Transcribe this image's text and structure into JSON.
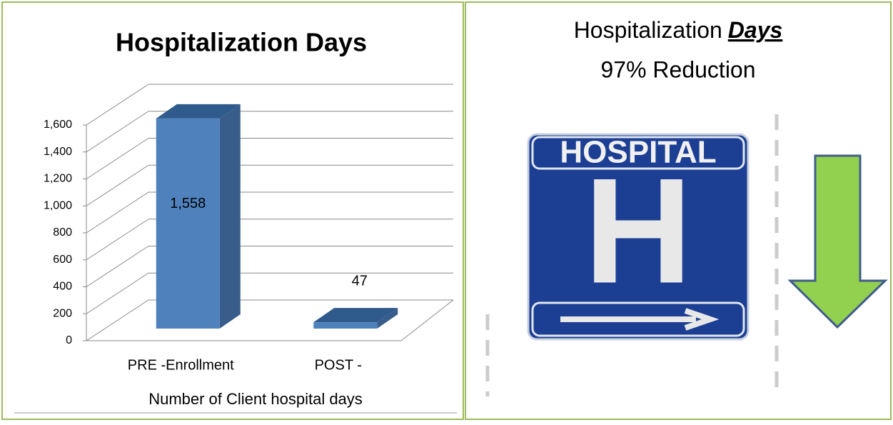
{
  "chart_data": {
    "type": "bar3d",
    "title": "Hospitalization Days",
    "categories": [
      "PRE -Enrollment",
      "POST -"
    ],
    "x_label": "Number of Client hospital days",
    "values": [
      1558,
      47
    ],
    "value_labels": [
      "1,558",
      "47"
    ],
    "color": "#4f81bd",
    "ylim": [
      0,
      1600
    ],
    "yticks": [
      0,
      200,
      400,
      600,
      800,
      {
        "value": 1000,
        "label": "1,000"
      },
      {
        "value": 1200,
        "label": "1,200"
      },
      {
        "value": 1400,
        "label": "1,400"
      },
      {
        "value": 1600,
        "label": "1,600"
      }
    ],
    "grid": true
  },
  "panel": {
    "title_prefix": "Hospitalization",
    "title_emphasis": "Days",
    "subtitle": "97% Reduction",
    "sign": {
      "label": "HOSPITAL",
      "letter": "H"
    }
  }
}
